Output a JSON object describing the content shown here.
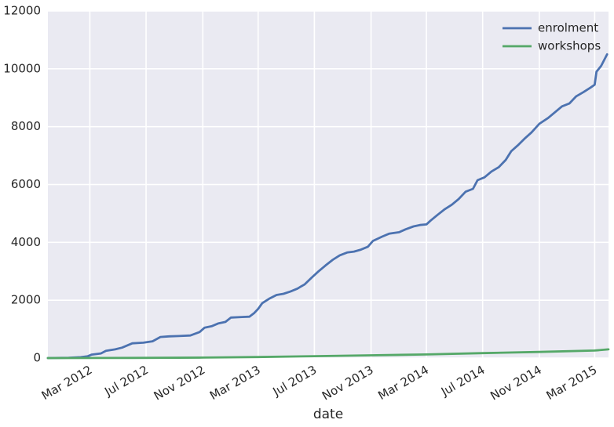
{
  "chart_data": {
    "type": "line",
    "title": "",
    "xlabel": "date",
    "ylabel": "",
    "ylim": [
      0,
      12000
    ],
    "xlim": [
      "2011-12-01",
      "2015-03-31"
    ],
    "grid": true,
    "legend_position": "top-right",
    "y_ticks": [
      0,
      2000,
      4000,
      6000,
      8000,
      10000,
      12000
    ],
    "y_tick_labels": [
      "0",
      "2000",
      "4000",
      "6000",
      "8000",
      "10000",
      "12000"
    ],
    "x_ticks": [
      "2012-03-01",
      "2012-07-01",
      "2012-11-01",
      "2013-03-01",
      "2013-07-01",
      "2013-11-01",
      "2014-03-01",
      "2014-07-01",
      "2014-11-01",
      "2015-03-01"
    ],
    "x_tick_labels": [
      "Mar 2012",
      "Jul 2012",
      "Nov 2012",
      "Mar 2013",
      "Jul 2013",
      "Nov 2013",
      "Mar 2014",
      "Jul 2014",
      "Nov 2014",
      "Mar 2015"
    ],
    "series": [
      {
        "name": "enrolment",
        "color": "#4c72b0",
        "points": [
          [
            "2011-12-01",
            0
          ],
          [
            "2012-01-15",
            10
          ],
          [
            "2012-02-10",
            30
          ],
          [
            "2012-02-25",
            60
          ],
          [
            "2012-03-05",
            120
          ],
          [
            "2012-03-25",
            160
          ],
          [
            "2012-04-05",
            250
          ],
          [
            "2012-04-25",
            300
          ],
          [
            "2012-05-10",
            360
          ],
          [
            "2012-06-01",
            510
          ],
          [
            "2012-06-25",
            530
          ],
          [
            "2012-07-15",
            580
          ],
          [
            "2012-08-01",
            730
          ],
          [
            "2012-08-20",
            750
          ],
          [
            "2012-09-10",
            760
          ],
          [
            "2012-10-05",
            780
          ],
          [
            "2012-10-25",
            900
          ],
          [
            "2012-11-05",
            1050
          ],
          [
            "2012-11-20",
            1100
          ],
          [
            "2012-12-05",
            1200
          ],
          [
            "2012-12-20",
            1250
          ],
          [
            "2013-01-01",
            1400
          ],
          [
            "2013-01-25",
            1420
          ],
          [
            "2013-02-10",
            1430
          ],
          [
            "2013-02-20",
            1550
          ],
          [
            "2013-03-01",
            1700
          ],
          [
            "2013-03-10",
            1900
          ],
          [
            "2013-03-25",
            2050
          ],
          [
            "2013-04-10",
            2180
          ],
          [
            "2013-04-25",
            2220
          ],
          [
            "2013-05-10",
            2300
          ],
          [
            "2013-05-25",
            2400
          ],
          [
            "2013-06-10",
            2550
          ],
          [
            "2013-06-25",
            2780
          ],
          [
            "2013-07-10",
            3000
          ],
          [
            "2013-07-25",
            3200
          ],
          [
            "2013-08-10",
            3400
          ],
          [
            "2013-08-25",
            3550
          ],
          [
            "2013-09-10",
            3650
          ],
          [
            "2013-09-25",
            3680
          ],
          [
            "2013-10-10",
            3750
          ],
          [
            "2013-10-25",
            3850
          ],
          [
            "2013-11-05",
            4050
          ],
          [
            "2013-11-25",
            4200
          ],
          [
            "2013-12-10",
            4300
          ],
          [
            "2014-01-01",
            4350
          ],
          [
            "2014-01-15",
            4450
          ],
          [
            "2014-02-01",
            4550
          ],
          [
            "2014-02-15",
            4600
          ],
          [
            "2014-03-01",
            4620
          ],
          [
            "2014-03-10",
            4750
          ],
          [
            "2014-03-25",
            4950
          ],
          [
            "2014-04-10",
            5150
          ],
          [
            "2014-04-25",
            5300
          ],
          [
            "2014-05-10",
            5500
          ],
          [
            "2014-05-25",
            5750
          ],
          [
            "2014-06-10",
            5850
          ],
          [
            "2014-06-20",
            6150
          ],
          [
            "2014-07-05",
            6250
          ],
          [
            "2014-07-20",
            6450
          ],
          [
            "2014-08-05",
            6600
          ],
          [
            "2014-08-20",
            6850
          ],
          [
            "2014-09-01",
            7150
          ],
          [
            "2014-09-15",
            7350
          ],
          [
            "2014-10-01",
            7600
          ],
          [
            "2014-10-15",
            7800
          ],
          [
            "2014-11-01",
            8100
          ],
          [
            "2014-11-20",
            8300
          ],
          [
            "2014-12-05",
            8500
          ],
          [
            "2014-12-20",
            8700
          ],
          [
            "2015-01-05",
            8800
          ],
          [
            "2015-01-20",
            9050
          ],
          [
            "2015-02-05",
            9200
          ],
          [
            "2015-02-20",
            9350
          ],
          [
            "2015-03-01",
            9450
          ],
          [
            "2015-03-05",
            9900
          ],
          [
            "2015-03-15",
            10100
          ],
          [
            "2015-03-28",
            10500
          ]
        ]
      },
      {
        "name": "workshops",
        "color": "#55a868",
        "points": [
          [
            "2011-12-01",
            0
          ],
          [
            "2012-06-01",
            5
          ],
          [
            "2012-11-01",
            15
          ],
          [
            "2013-03-01",
            35
          ],
          [
            "2013-07-01",
            65
          ],
          [
            "2013-11-01",
            95
          ],
          [
            "2014-03-01",
            125
          ],
          [
            "2014-07-01",
            170
          ],
          [
            "2014-11-01",
            210
          ],
          [
            "2015-03-01",
            260
          ],
          [
            "2015-03-31",
            300
          ]
        ]
      }
    ]
  }
}
